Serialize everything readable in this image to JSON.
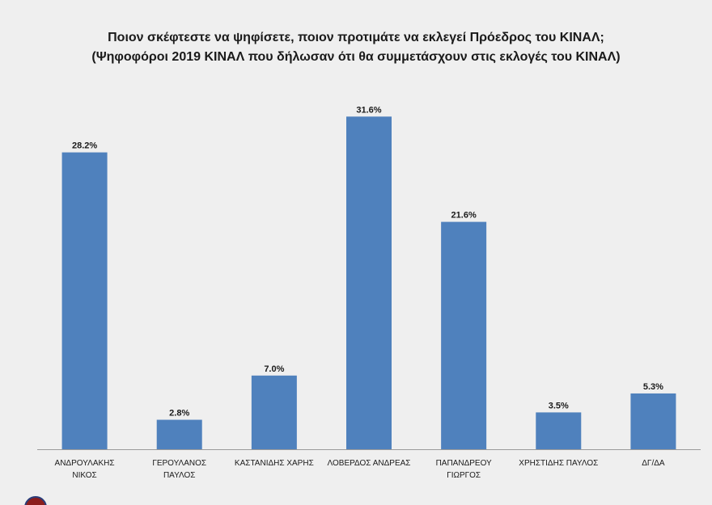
{
  "chart_data": {
    "type": "bar",
    "title": "Ποιον σκέφτεστε να ψηφίσετε, ποιον προτιμάτε να εκλεγεί Πρόεδρος του ΚΙΝΑΛ;",
    "subtitle": "(Ψηφοφόροι 2019 ΚΙΝΑΛ που δήλωσαν ότι θα συμμετάσχουν στις εκλογές του ΚΙΝΑΛ)",
    "categories": [
      [
        "ΑΝΔΡΟΥΛΑΚΗΣ",
        "ΝΙΚΟΣ"
      ],
      [
        "ΓΕΡΟΥΛΑΝΟΣ",
        "ΠΑΥΛΟΣ"
      ],
      [
        "ΚΑΣΤΑΝΙΔΗΣ ΧΑΡΗΣ"
      ],
      [
        "ΛΟΒΕΡΔΟΣ ΑΝΔΡΕΑΣ"
      ],
      [
        "ΠΑΠΑΝΔΡΕΟΥ",
        "ΓΙΩΡΓΟΣ"
      ],
      [
        "ΧΡΗΣΤΙΔΗΣ ΠΑΥΛΟΣ"
      ],
      [
        "ΔΓ/ΔΑ"
      ]
    ],
    "values": [
      28.2,
      2.8,
      7.0,
      31.6,
      21.6,
      3.5,
      5.3
    ],
    "value_labels": [
      "28.2%",
      "2.8%",
      "7.0%",
      "31.6%",
      "21.6%",
      "3.5%",
      "5.3%"
    ],
    "xlabel": "",
    "ylabel": "",
    "ylim": [
      0,
      35
    ],
    "grid": false,
    "legend": "none",
    "bar_color": "#4f81bd"
  }
}
